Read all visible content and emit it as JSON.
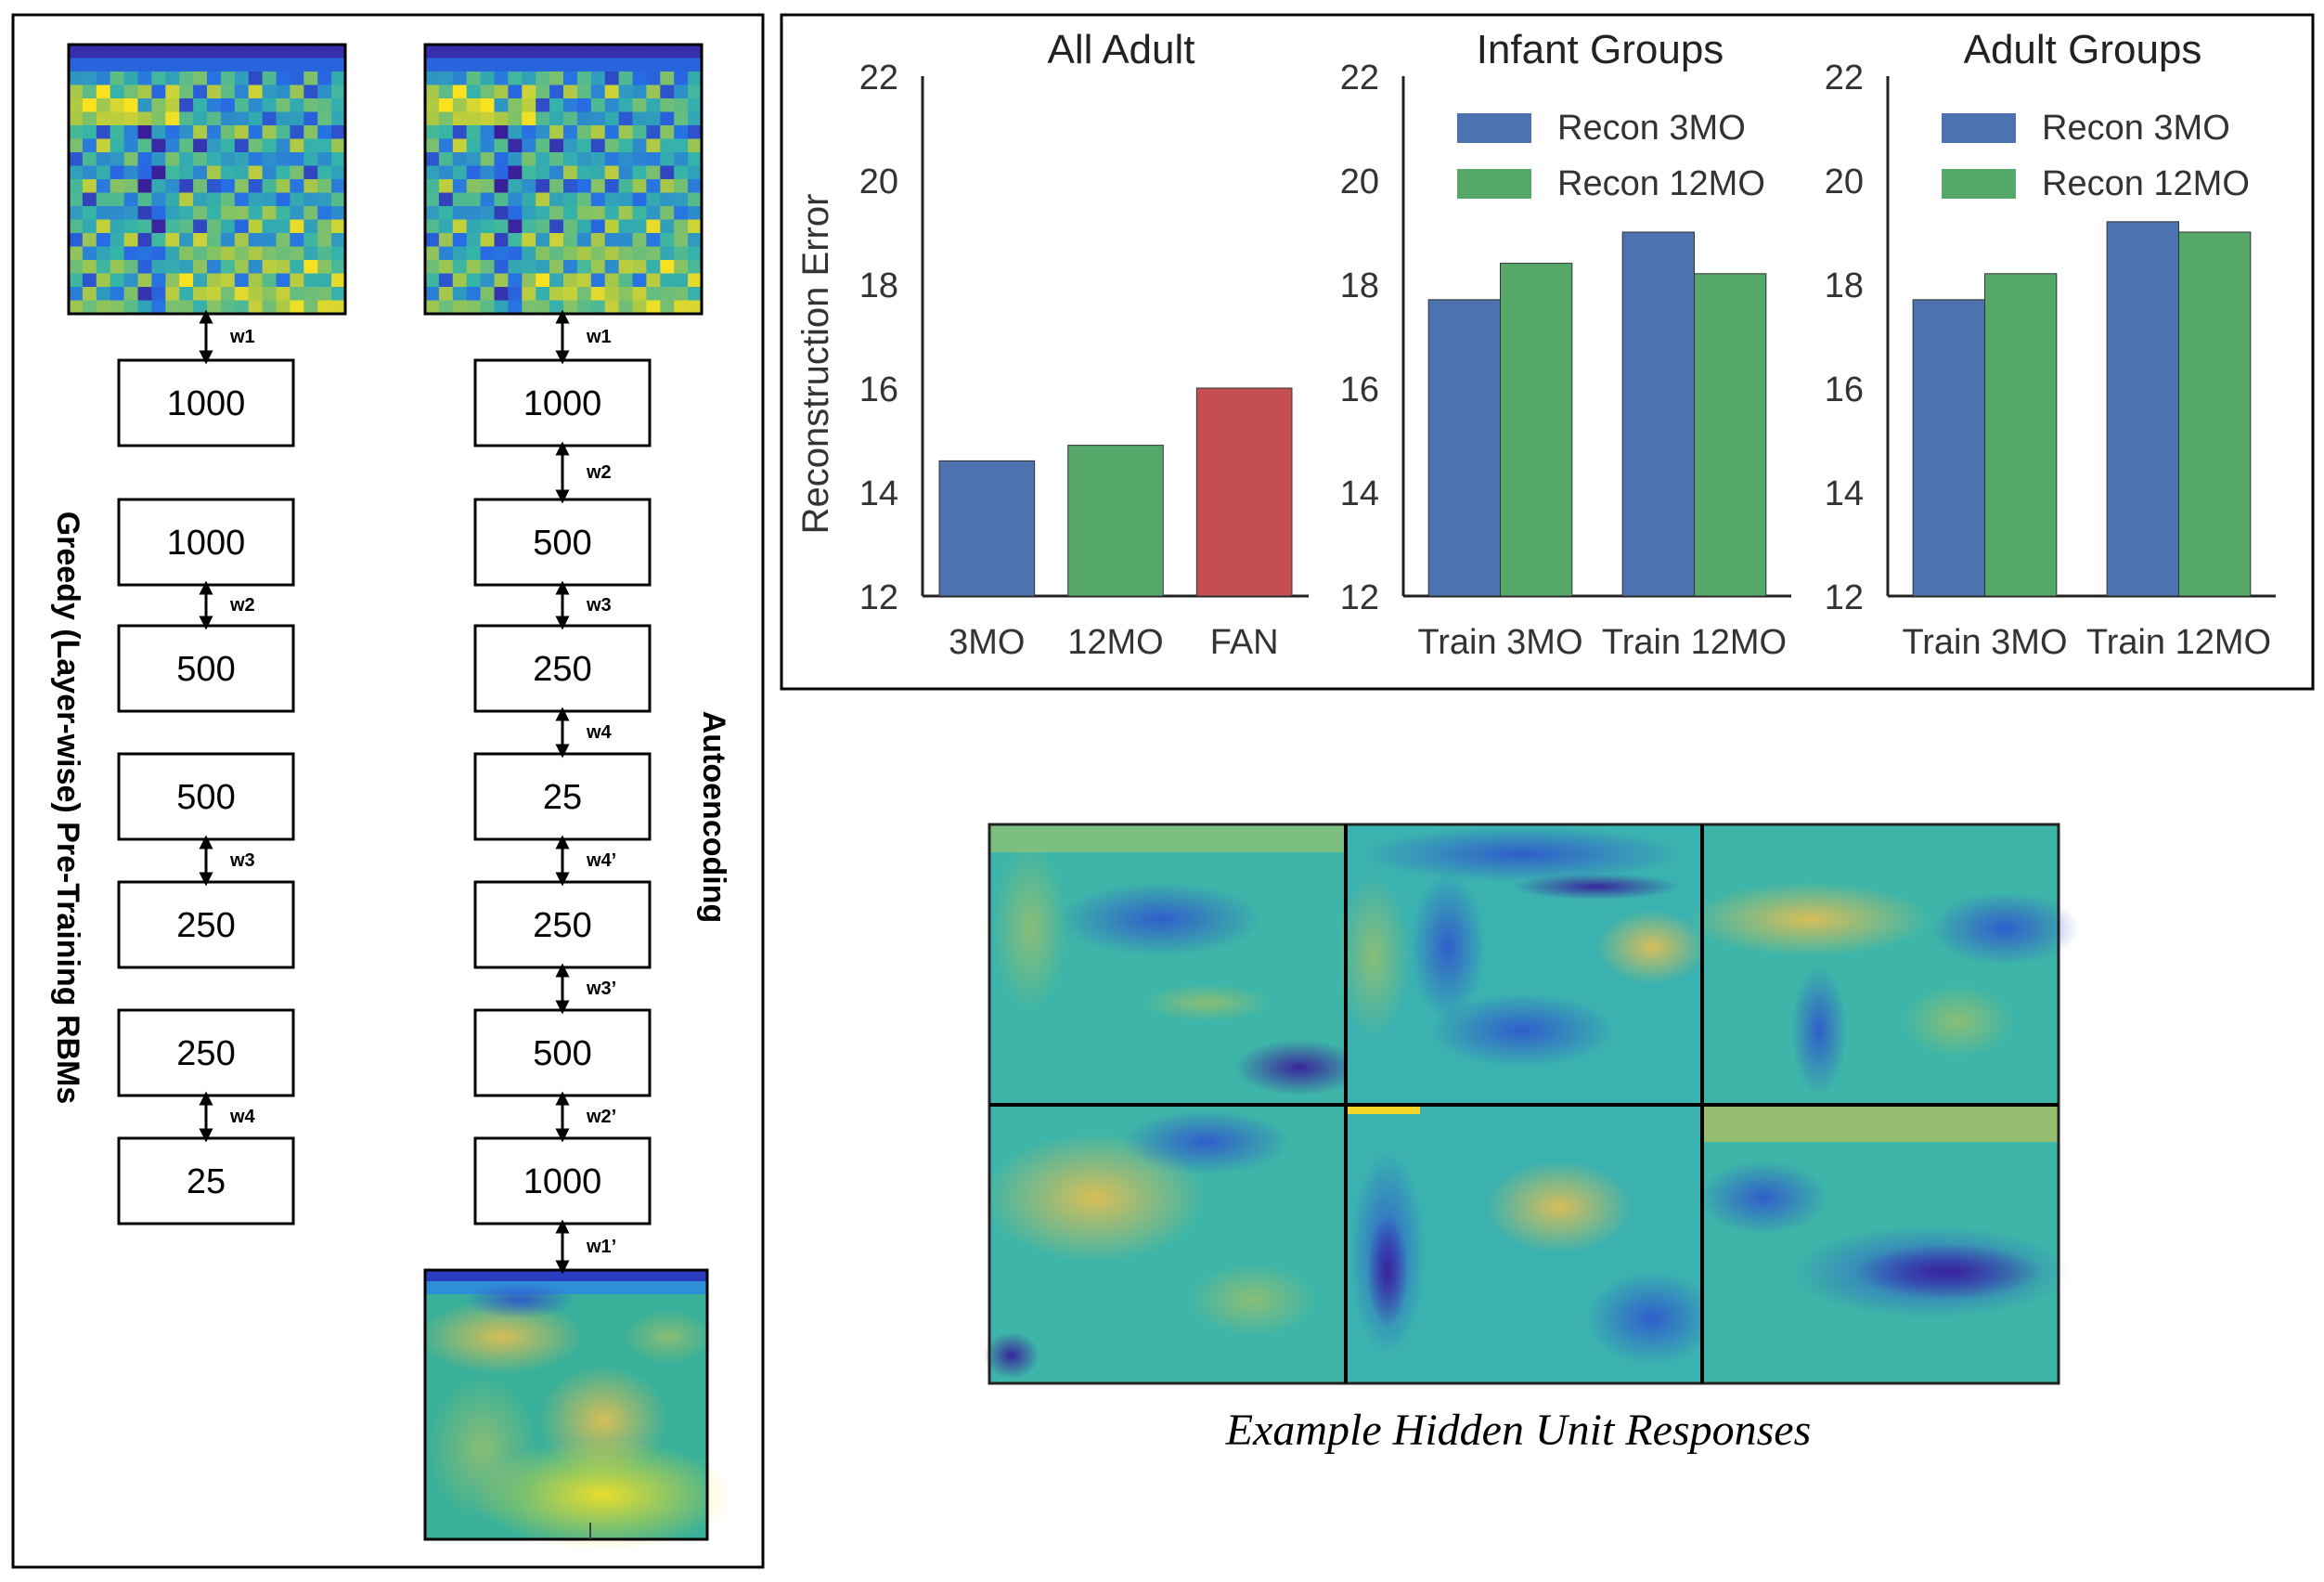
{
  "left_panel": {
    "rbm_label": "Greedy (Layer-wise) Pre-Training RBMs",
    "ae_label": "Autoencoding",
    "rbm_layers": [
      "1000",
      "1000",
      "500",
      "500",
      "250",
      "250",
      "25"
    ],
    "rbm_weights": [
      "w1",
      "w2",
      "w3",
      "w4"
    ],
    "ae_layers": [
      "1000",
      "500",
      "250",
      "25",
      "250",
      "500",
      "1000"
    ],
    "ae_weights": [
      "w1",
      "w2",
      "w3",
      "w4",
      "w4’",
      "w3’",
      "w2’",
      "w1’"
    ]
  },
  "hidden_units_caption": "Example Hidden Unit Responses",
  "colors": {
    "recon_3mo": "#4c72b0",
    "recon_12mo": "#55a868",
    "fan": "#c44e52",
    "heat_low": "#3a1f9a",
    "heat_mid": "#36b5a7",
    "heat_high": "#fbe220"
  },
  "chart_data": [
    {
      "type": "bar",
      "title": "All Adult",
      "ylabel": "Reconstruction Error",
      "ylim": [
        12,
        22
      ],
      "yticks": [
        "12",
        "14",
        "16",
        "18",
        "20",
        "22"
      ],
      "categories": [
        "3MO",
        "12MO",
        "FAN"
      ],
      "values": [
        14.6,
        14.9,
        16.0
      ],
      "bar_colors": [
        "#4c72b0",
        "#55a868",
        "#c44e52"
      ]
    },
    {
      "type": "bar",
      "title": "Infant Groups",
      "ylim": [
        12,
        22
      ],
      "yticks": [
        "12",
        "14",
        "16",
        "18",
        "20",
        "22"
      ],
      "categories": [
        "Train 3MO",
        "Train 12MO"
      ],
      "series": [
        {
          "name": "Recon 3MO",
          "values": [
            17.7,
            19.0
          ]
        },
        {
          "name": "Recon 12MO",
          "values": [
            18.4,
            18.2
          ]
        }
      ],
      "legend": "top-left"
    },
    {
      "type": "bar",
      "title": "Adult Groups",
      "ylim": [
        12,
        22
      ],
      "yticks": [
        "12",
        "14",
        "16",
        "18",
        "20",
        "22"
      ],
      "categories": [
        "Train 3MO",
        "Train 12MO"
      ],
      "series": [
        {
          "name": "Recon 3MO",
          "values": [
            17.7,
            19.2
          ]
        },
        {
          "name": "Recon 12MO",
          "values": [
            18.2,
            19.0
          ]
        }
      ],
      "legend": "top-left"
    }
  ]
}
